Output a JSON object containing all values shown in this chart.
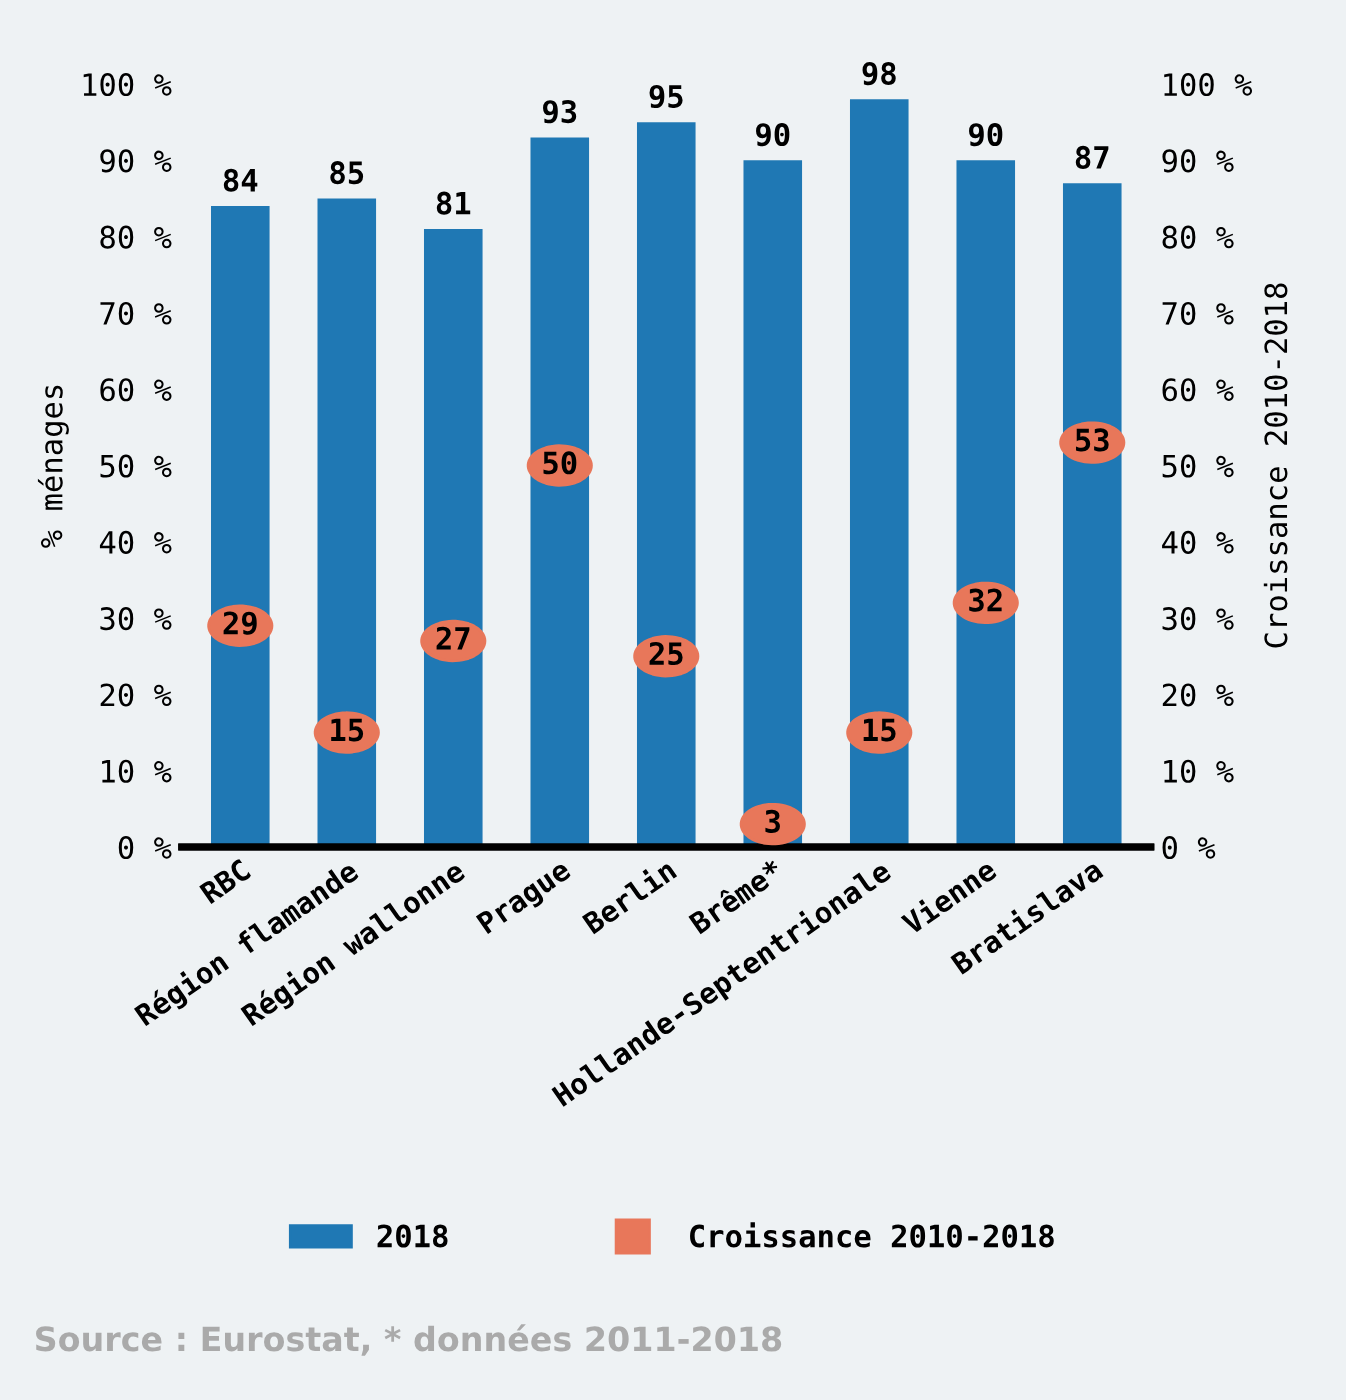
{
  "chart_data": {
    "type": "bar",
    "categories": [
      "RBC",
      "Région flamande",
      "Région wallonne",
      "Prague",
      "Berlin",
      "Brême*",
      "Hollande-Septentrionale",
      "Vienne",
      "Bratislava"
    ],
    "series": [
      {
        "name": "2018",
        "color": "#1f78b4",
        "values": [
          84,
          85,
          81,
          93,
          95,
          90,
          98,
          90,
          87
        ]
      },
      {
        "name": "Croissance 2010-2018",
        "type": "scatter",
        "axis": "y2",
        "marker": "circle",
        "color": "#e8775a",
        "values": [
          29,
          15,
          27,
          50,
          25,
          3,
          15,
          32,
          53
        ]
      }
    ],
    "ylabel": "% ménages",
    "y2label": "Croissance 2010-2018",
    "ylim": [
      0,
      100
    ],
    "yticks": [
      {
        "value": 0,
        "label": "0 %"
      },
      {
        "value": 10,
        "label": "10 %"
      },
      {
        "value": 20,
        "label": "20 %"
      },
      {
        "value": 30,
        "label": "30 %"
      },
      {
        "value": 40,
        "label": "40 %"
      },
      {
        "value": 50,
        "label": "50 %"
      },
      {
        "value": 60,
        "label": "60 %"
      },
      {
        "value": 70,
        "label": "70 %"
      },
      {
        "value": 80,
        "label": "80 %"
      },
      {
        "value": 90,
        "label": "90 %"
      },
      {
        "value": 100,
        "label": "100 %"
      }
    ],
    "y2lim": [
      0,
      100
    ],
    "y2ticks": [
      {
        "value": 0,
        "label": "0 %"
      },
      {
        "value": 10,
        "label": "10 %"
      },
      {
        "value": 20,
        "label": "20 %"
      },
      {
        "value": 30,
        "label": "30 %"
      },
      {
        "value": 40,
        "label": "40 %"
      },
      {
        "value": 50,
        "label": "50 %"
      },
      {
        "value": 60,
        "label": "60 %"
      },
      {
        "value": 70,
        "label": "70 %"
      },
      {
        "value": 80,
        "label": "80 %"
      },
      {
        "value": 90,
        "label": "90 %"
      },
      {
        "value": 100,
        "label": "100 %"
      }
    ],
    "data_labels": true,
    "grid": false,
    "legend": "bottom",
    "annotations": [
      "Source : Eurostat, * données 2011-2018"
    ]
  }
}
